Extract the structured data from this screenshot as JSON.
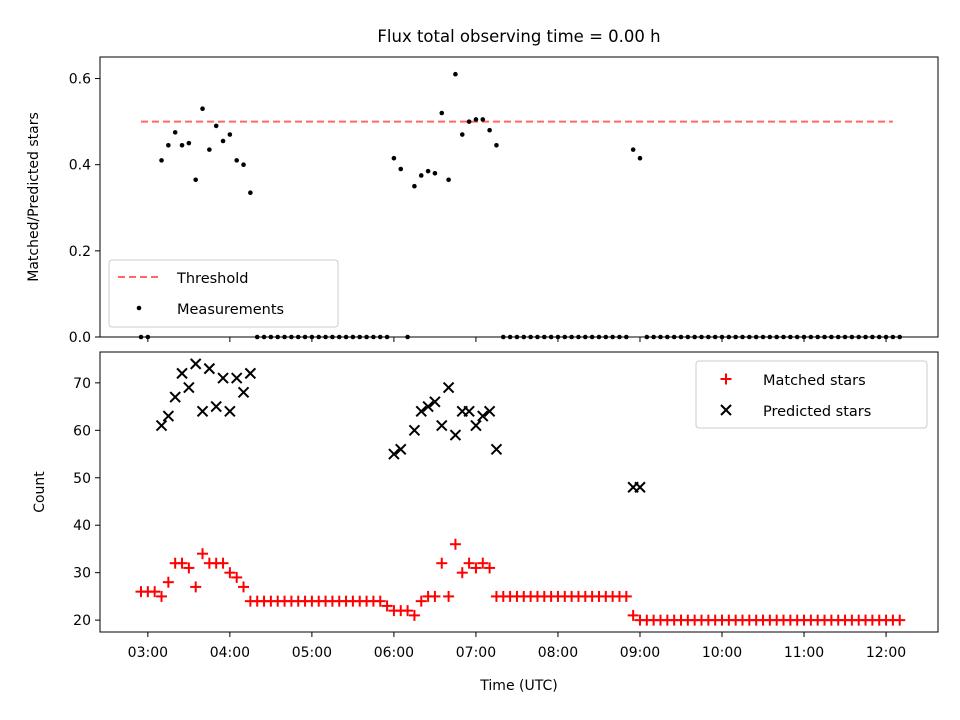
{
  "chart_data": [
    {
      "type": "scatter",
      "title": "Flux total observing time = 0.00 h",
      "xlabel": "",
      "ylabel": "Matched/Predicted stars",
      "xlim": [
        "02:25",
        "12:38"
      ],
      "ylim": [
        0,
        0.65
      ],
      "yticks": [
        "0.0",
        "0.2",
        "0.4",
        "0.6"
      ],
      "legend_position": "lower-left",
      "threshold": {
        "name": "Threshold",
        "value": 0.5,
        "x_start": "02:55",
        "x_end": "12:05",
        "color": "#ff6666",
        "style": "dashed"
      },
      "series": [
        {
          "name": "Measurements",
          "color": "#000000",
          "marker": "dot",
          "points": [
            [
              "02:55",
              0
            ],
            [
              "03:00",
              0
            ],
            [
              "03:10",
              0.41
            ],
            [
              "03:15",
              0.445
            ],
            [
              "03:20",
              0.475
            ],
            [
              "03:25",
              0.445
            ],
            [
              "03:30",
              0.45
            ],
            [
              "03:35",
              0.365
            ],
            [
              "03:40",
              0.53
            ],
            [
              "03:45",
              0.435
            ],
            [
              "03:50",
              0.49
            ],
            [
              "03:55",
              0.455
            ],
            [
              "04:00",
              0.47
            ],
            [
              "04:05",
              0.41
            ],
            [
              "04:10",
              0.4
            ],
            [
              "04:15",
              0.335
            ],
            [
              "04:20",
              0
            ],
            [
              "04:25",
              0
            ],
            [
              "04:30",
              0
            ],
            [
              "04:35",
              0
            ],
            [
              "04:40",
              0
            ],
            [
              "04:45",
              0
            ],
            [
              "04:50",
              0
            ],
            [
              "04:55",
              0
            ],
            [
              "05:00",
              0
            ],
            [
              "05:05",
              0
            ],
            [
              "05:10",
              0
            ],
            [
              "05:15",
              0
            ],
            [
              "05:20",
              0
            ],
            [
              "05:25",
              0
            ],
            [
              "05:30",
              0
            ],
            [
              "05:35",
              0
            ],
            [
              "05:40",
              0
            ],
            [
              "05:45",
              0
            ],
            [
              "05:50",
              0
            ],
            [
              "05:55",
              0
            ],
            [
              "06:00",
              0.415
            ],
            [
              "06:05",
              0.39
            ],
            [
              "06:10",
              0
            ],
            [
              "06:15",
              0.35
            ],
            [
              "06:20",
              0.375
            ],
            [
              "06:25",
              0.385
            ],
            [
              "06:30",
              0.38
            ],
            [
              "06:35",
              0.52
            ],
            [
              "06:40",
              0.365
            ],
            [
              "06:45",
              0.61
            ],
            [
              "06:50",
              0.47
            ],
            [
              "06:55",
              0.5
            ],
            [
              "07:00",
              0.505
            ],
            [
              "07:05",
              0.505
            ],
            [
              "07:10",
              0.48
            ],
            [
              "07:15",
              0.445
            ],
            [
              "07:20",
              0
            ],
            [
              "07:25",
              0
            ],
            [
              "07:30",
              0
            ],
            [
              "07:35",
              0
            ],
            [
              "07:40",
              0
            ],
            [
              "07:45",
              0
            ],
            [
              "07:50",
              0
            ],
            [
              "07:55",
              0
            ],
            [
              "08:00",
              0
            ],
            [
              "08:05",
              0
            ],
            [
              "08:10",
              0
            ],
            [
              "08:15",
              0
            ],
            [
              "08:20",
              0
            ],
            [
              "08:25",
              0
            ],
            [
              "08:30",
              0
            ],
            [
              "08:35",
              0
            ],
            [
              "08:40",
              0
            ],
            [
              "08:45",
              0
            ],
            [
              "08:50",
              0
            ],
            [
              "08:55",
              0.435
            ],
            [
              "09:00",
              0.415
            ],
            [
              "09:05",
              0
            ],
            [
              "09:10",
              0
            ],
            [
              "09:15",
              0
            ],
            [
              "09:20",
              0
            ],
            [
              "09:25",
              0
            ],
            [
              "09:30",
              0
            ],
            [
              "09:35",
              0
            ],
            [
              "09:40",
              0
            ],
            [
              "09:45",
              0
            ],
            [
              "09:50",
              0
            ],
            [
              "09:55",
              0
            ],
            [
              "10:00",
              0
            ],
            [
              "10:05",
              0
            ],
            [
              "10:10",
              0
            ],
            [
              "10:15",
              0
            ],
            [
              "10:20",
              0
            ],
            [
              "10:25",
              0
            ],
            [
              "10:30",
              0
            ],
            [
              "10:35",
              0
            ],
            [
              "10:40",
              0
            ],
            [
              "10:45",
              0
            ],
            [
              "10:50",
              0
            ],
            [
              "10:55",
              0
            ],
            [
              "11:00",
              0
            ],
            [
              "11:05",
              0
            ],
            [
              "11:10",
              0
            ],
            [
              "11:15",
              0
            ],
            [
              "11:20",
              0
            ],
            [
              "11:25",
              0
            ],
            [
              "11:30",
              0
            ],
            [
              "11:35",
              0
            ],
            [
              "11:40",
              0
            ],
            [
              "11:45",
              0
            ],
            [
              "11:50",
              0
            ],
            [
              "11:55",
              0
            ],
            [
              "12:00",
              0
            ],
            [
              "12:05",
              0
            ],
            [
              "12:10",
              0
            ]
          ]
        }
      ]
    },
    {
      "type": "scatter",
      "title": "",
      "xlabel": "Time (UTC)",
      "ylabel": "Count",
      "xlim": [
        "02:25",
        "12:38"
      ],
      "ylim": [
        17.5,
        76.5
      ],
      "yticks": [
        "20",
        "30",
        "40",
        "50",
        "60",
        "70"
      ],
      "xticks": [
        "03:00",
        "04:00",
        "05:00",
        "06:00",
        "07:00",
        "08:00",
        "09:00",
        "10:00",
        "11:00",
        "12:00"
      ],
      "legend_position": "upper-right",
      "series": [
        {
          "name": "Matched stars",
          "color": "#ff0000",
          "marker": "plus",
          "points": [
            [
              "02:55",
              26
            ],
            [
              "03:00",
              26
            ],
            [
              "03:05",
              26
            ],
            [
              "03:10",
              25
            ],
            [
              "03:15",
              28
            ],
            [
              "03:20",
              32
            ],
            [
              "03:25",
              32
            ],
            [
              "03:30",
              31
            ],
            [
              "03:35",
              27
            ],
            [
              "03:40",
              34
            ],
            [
              "03:45",
              32
            ],
            [
              "03:50",
              32
            ],
            [
              "03:55",
              32
            ],
            [
              "04:00",
              30
            ],
            [
              "04:05",
              29
            ],
            [
              "04:10",
              27
            ],
            [
              "04:15",
              24
            ],
            [
              "04:20",
              24
            ],
            [
              "04:25",
              24
            ],
            [
              "04:30",
              24
            ],
            [
              "04:35",
              24
            ],
            [
              "04:40",
              24
            ],
            [
              "04:45",
              24
            ],
            [
              "04:50",
              24
            ],
            [
              "04:55",
              24
            ],
            [
              "05:00",
              24
            ],
            [
              "05:05",
              24
            ],
            [
              "05:10",
              24
            ],
            [
              "05:15",
              24
            ],
            [
              "05:20",
              24
            ],
            [
              "05:25",
              24
            ],
            [
              "05:30",
              24
            ],
            [
              "05:35",
              24
            ],
            [
              "05:40",
              24
            ],
            [
              "05:45",
              24
            ],
            [
              "05:50",
              24
            ],
            [
              "05:55",
              23
            ],
            [
              "06:00",
              22
            ],
            [
              "06:05",
              22
            ],
            [
              "06:10",
              22
            ],
            [
              "06:15",
              21
            ],
            [
              "06:20",
              24
            ],
            [
              "06:25",
              25
            ],
            [
              "06:30",
              25
            ],
            [
              "06:35",
              32
            ],
            [
              "06:40",
              25
            ],
            [
              "06:45",
              36
            ],
            [
              "06:50",
              30
            ],
            [
              "06:55",
              32
            ],
            [
              "07:00",
              31
            ],
            [
              "07:05",
              32
            ],
            [
              "07:10",
              31
            ],
            [
              "07:15",
              25
            ],
            [
              "07:20",
              25
            ],
            [
              "07:25",
              25
            ],
            [
              "07:30",
              25
            ],
            [
              "07:35",
              25
            ],
            [
              "07:40",
              25
            ],
            [
              "07:45",
              25
            ],
            [
              "07:50",
              25
            ],
            [
              "07:55",
              25
            ],
            [
              "08:00",
              25
            ],
            [
              "08:05",
              25
            ],
            [
              "08:10",
              25
            ],
            [
              "08:15",
              25
            ],
            [
              "08:20",
              25
            ],
            [
              "08:25",
              25
            ],
            [
              "08:30",
              25
            ],
            [
              "08:35",
              25
            ],
            [
              "08:40",
              25
            ],
            [
              "08:45",
              25
            ],
            [
              "08:50",
              25
            ],
            [
              "08:55",
              21
            ],
            [
              "09:00",
              20
            ],
            [
              "09:05",
              20
            ],
            [
              "09:10",
              20
            ],
            [
              "09:15",
              20
            ],
            [
              "09:20",
              20
            ],
            [
              "09:25",
              20
            ],
            [
              "09:30",
              20
            ],
            [
              "09:35",
              20
            ],
            [
              "09:40",
              20
            ],
            [
              "09:45",
              20
            ],
            [
              "09:50",
              20
            ],
            [
              "09:55",
              20
            ],
            [
              "10:00",
              20
            ],
            [
              "10:05",
              20
            ],
            [
              "10:10",
              20
            ],
            [
              "10:15",
              20
            ],
            [
              "10:20",
              20
            ],
            [
              "10:25",
              20
            ],
            [
              "10:30",
              20
            ],
            [
              "10:35",
              20
            ],
            [
              "10:40",
              20
            ],
            [
              "10:45",
              20
            ],
            [
              "10:50",
              20
            ],
            [
              "10:55",
              20
            ],
            [
              "11:00",
              20
            ],
            [
              "11:05",
              20
            ],
            [
              "11:10",
              20
            ],
            [
              "11:15",
              20
            ],
            [
              "11:20",
              20
            ],
            [
              "11:25",
              20
            ],
            [
              "11:30",
              20
            ],
            [
              "11:35",
              20
            ],
            [
              "11:40",
              20
            ],
            [
              "11:45",
              20
            ],
            [
              "11:50",
              20
            ],
            [
              "11:55",
              20
            ],
            [
              "12:00",
              20
            ],
            [
              "12:05",
              20
            ],
            [
              "12:10",
              20
            ]
          ]
        },
        {
          "name": "Predicted stars",
          "color": "#000000",
          "marker": "x",
          "points": [
            [
              "03:10",
              61
            ],
            [
              "03:15",
              63
            ],
            [
              "03:20",
              67
            ],
            [
              "03:25",
              72
            ],
            [
              "03:30",
              69
            ],
            [
              "03:35",
              74
            ],
            [
              "03:40",
              64
            ],
            [
              "03:45",
              73
            ],
            [
              "03:50",
              65
            ],
            [
              "03:55",
              71
            ],
            [
              "04:00",
              64
            ],
            [
              "04:05",
              71
            ],
            [
              "04:10",
              68
            ],
            [
              "04:15",
              72
            ],
            [
              "06:00",
              55
            ],
            [
              "06:05",
              56
            ],
            [
              "06:15",
              60
            ],
            [
              "06:20",
              64
            ],
            [
              "06:25",
              65
            ],
            [
              "06:30",
              66
            ],
            [
              "06:35",
              61
            ],
            [
              "06:40",
              69
            ],
            [
              "06:45",
              59
            ],
            [
              "06:50",
              64
            ],
            [
              "06:55",
              64
            ],
            [
              "07:00",
              61
            ],
            [
              "07:05",
              63
            ],
            [
              "07:10",
              64
            ],
            [
              "07:15",
              56
            ],
            [
              "08:55",
              48
            ],
            [
              "09:00",
              48
            ]
          ]
        }
      ]
    }
  ]
}
